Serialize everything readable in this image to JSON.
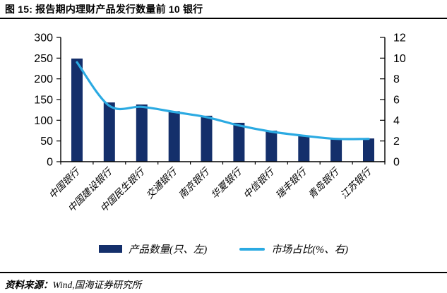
{
  "figure": {
    "title": "图 15: 报告期内理财产品发行数量前 10 银行",
    "source_label": "资料来源：",
    "source_value": "Wind,国海证券研究所"
  },
  "colors": {
    "bar": "#142F6B",
    "line": "#2BAAE2",
    "axis": "#000000"
  },
  "chart_data": {
    "type": "bar",
    "title": "报告期内理财产品发行数量前 10 银行",
    "categories": [
      "中国银行",
      "中国建设银行",
      "中国民生银行",
      "交通银行",
      "南京银行",
      "华夏银行",
      "中信银行",
      "瑞丰银行",
      "青岛银行",
      "江苏银行"
    ],
    "series": [
      {
        "name": "产品数量(只、左)",
        "type": "bar",
        "axis": "left",
        "values": [
          249,
          143,
          138,
          122,
          111,
          94,
          75,
          63,
          56,
          56
        ],
        "color": "#142F6B"
      },
      {
        "name": "市场占比(%、右)",
        "type": "line",
        "axis": "right",
        "values": [
          9.6,
          5.4,
          5.3,
          4.8,
          4.3,
          3.5,
          2.9,
          2.5,
          2.2,
          2.2
        ],
        "color": "#2BAAE2"
      }
    ],
    "left_axis": {
      "range": [
        0,
        300
      ],
      "ticks": [
        0,
        50,
        100,
        150,
        200,
        250,
        300
      ]
    },
    "right_axis": {
      "range": [
        0,
        12
      ],
      "ticks": [
        0,
        2,
        4,
        6,
        8,
        10,
        12
      ]
    },
    "grid": false,
    "legend_position": "bottom",
    "line_smoothed": true
  }
}
